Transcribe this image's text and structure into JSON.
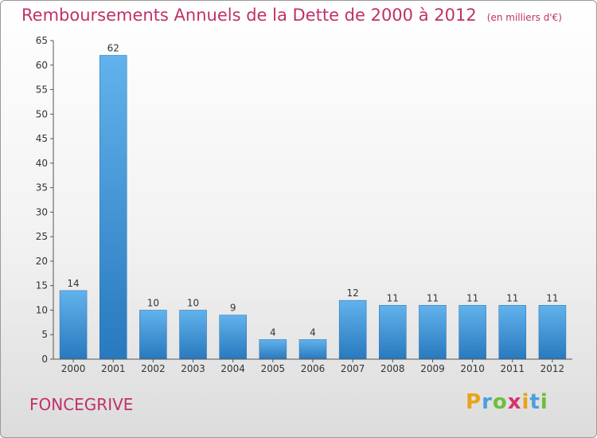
{
  "header": {
    "title": "Remboursements Annuels de la Dette de 2000 à 2012",
    "unit": "(en milliers d'€)"
  },
  "footer": {
    "commune": "FONCEGRIVE",
    "logo_letters": [
      "P",
      "r",
      "o",
      "x",
      "i",
      "t",
      "i"
    ],
    "logo_colors": [
      "#e8a317",
      "#4a9fe0",
      "#6cbf3a",
      "#d6336c",
      "#e8a317",
      "#4a9fe0",
      "#6cbf3a"
    ]
  },
  "chart_data": {
    "type": "bar",
    "title": "Remboursements Annuels de la Dette de 2000 à 2012",
    "categories": [
      "2000",
      "2001",
      "2002",
      "2003",
      "2004",
      "2005",
      "2006",
      "2007",
      "2008",
      "2009",
      "2010",
      "2011",
      "2012"
    ],
    "values": [
      14,
      62,
      10,
      10,
      9,
      4,
      4,
      12,
      11,
      11,
      11,
      11,
      11
    ],
    "data_labels": [
      "14",
      "62",
      "10",
      "10",
      "9",
      "4",
      "4",
      "12",
      "11",
      "11",
      "11",
      "11",
      "11"
    ],
    "yticks": [
      0,
      5,
      10,
      15,
      20,
      25,
      30,
      35,
      40,
      45,
      50,
      55,
      60,
      65
    ],
    "ylim": [
      0,
      65
    ],
    "grid": false,
    "bar_color": "#3a8fd6"
  }
}
